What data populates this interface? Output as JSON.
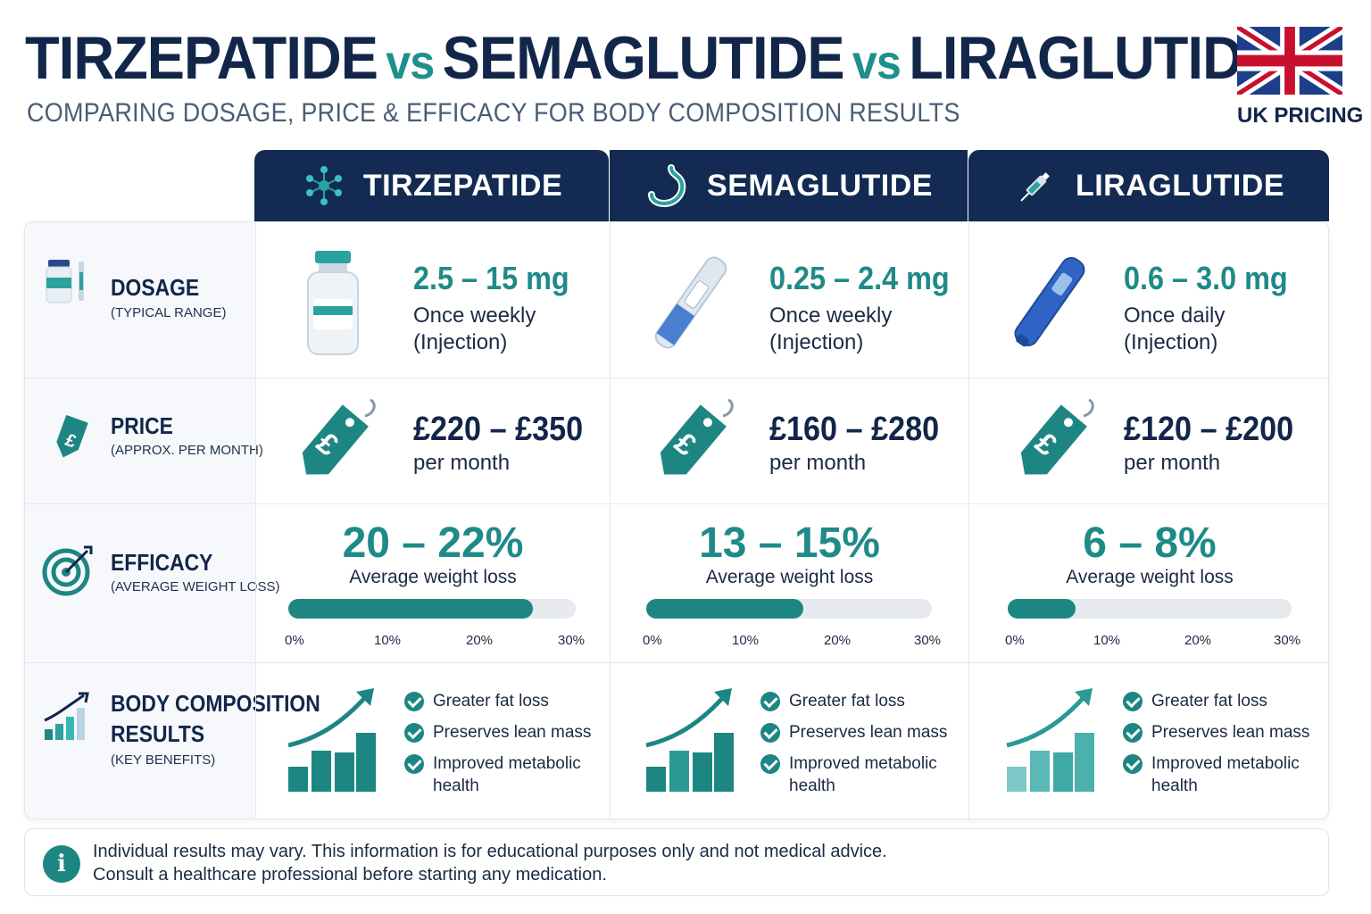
{
  "header": {
    "title_part1": "TIRZEPATIDE",
    "vs1": "vs",
    "title_part2": "SEMAGLUTIDE",
    "vs2": "vs",
    "title_part3": "LIRAGLUTIDE",
    "subtitle": "COMPARING DOSAGE, PRICE & EFFICACY FOR BODY COMPOSITION RESULTS",
    "badge": "UK PRICING",
    "badge_icon": "uk-flag-icon"
  },
  "colors": {
    "navy": "#132b52",
    "teal": "#1d8683",
    "accent_blue": "#2f63c4"
  },
  "rows": {
    "dosage": {
      "title": "DOSAGE",
      "sub": "(TYPICAL RANGE)"
    },
    "price": {
      "title": "PRICE",
      "sub": "(APPROX. PER MONTH)"
    },
    "efficacy": {
      "title": "EFFICACY",
      "sub": "(AVERAGE WEIGHT LOSS)"
    },
    "body": {
      "title_line1": "BODY COMPOSITION",
      "title_line2": "RESULTS",
      "sub": "(KEY BENEFITS)"
    }
  },
  "scale_ticks": [
    "0%",
    "10%",
    "20%",
    "30%"
  ],
  "drugs": [
    {
      "name": "TIRZEPATIDE",
      "icon": "molecule-icon",
      "dose_range": "2.5 – 15 mg",
      "dose_freq": "Once weekly",
      "dose_route": "(Injection)",
      "price_range": "£220 – £350",
      "price_unit": "per month",
      "efficacy_range": "20 – 22%",
      "efficacy_caption": "Average weight loss",
      "efficacy_level": 0.85,
      "benefits": [
        "Greater fat loss",
        "Preserves lean mass",
        "Improved metabolic health"
      ]
    },
    {
      "name": "SEMAGLUTIDE",
      "icon": "stomach-icon",
      "dose_range": "0.25 – 2.4 mg",
      "dose_freq": "Once weekly",
      "dose_route": "(Injection)",
      "price_range": "£160 – £280",
      "price_unit": "per month",
      "efficacy_range": "13 – 15%",
      "efficacy_caption": "Average weight loss",
      "efficacy_level": 0.55,
      "benefits": [
        "Greater fat loss",
        "Preserves lean mass",
        "Improved metabolic health"
      ]
    },
    {
      "name": "LIRAGLUTIDE",
      "icon": "syringe-icon",
      "dose_range": "0.6 – 3.0 mg",
      "dose_freq": "Once daily",
      "dose_route": "(Injection)",
      "price_range": "£120 – £200",
      "price_unit": "per month",
      "efficacy_range": "6 – 8%",
      "efficacy_caption": "Average weight loss",
      "efficacy_level": 0.24,
      "benefits": [
        "Greater fat loss",
        "Preserves lean mass",
        "Improved metabolic health"
      ]
    }
  ],
  "disclaimer": {
    "line1": "Individual results may vary. This information is for educational purposes only and not medical advice.",
    "line2": "Consult a healthcare professional before starting any medication.",
    "icon": "info-icon"
  }
}
